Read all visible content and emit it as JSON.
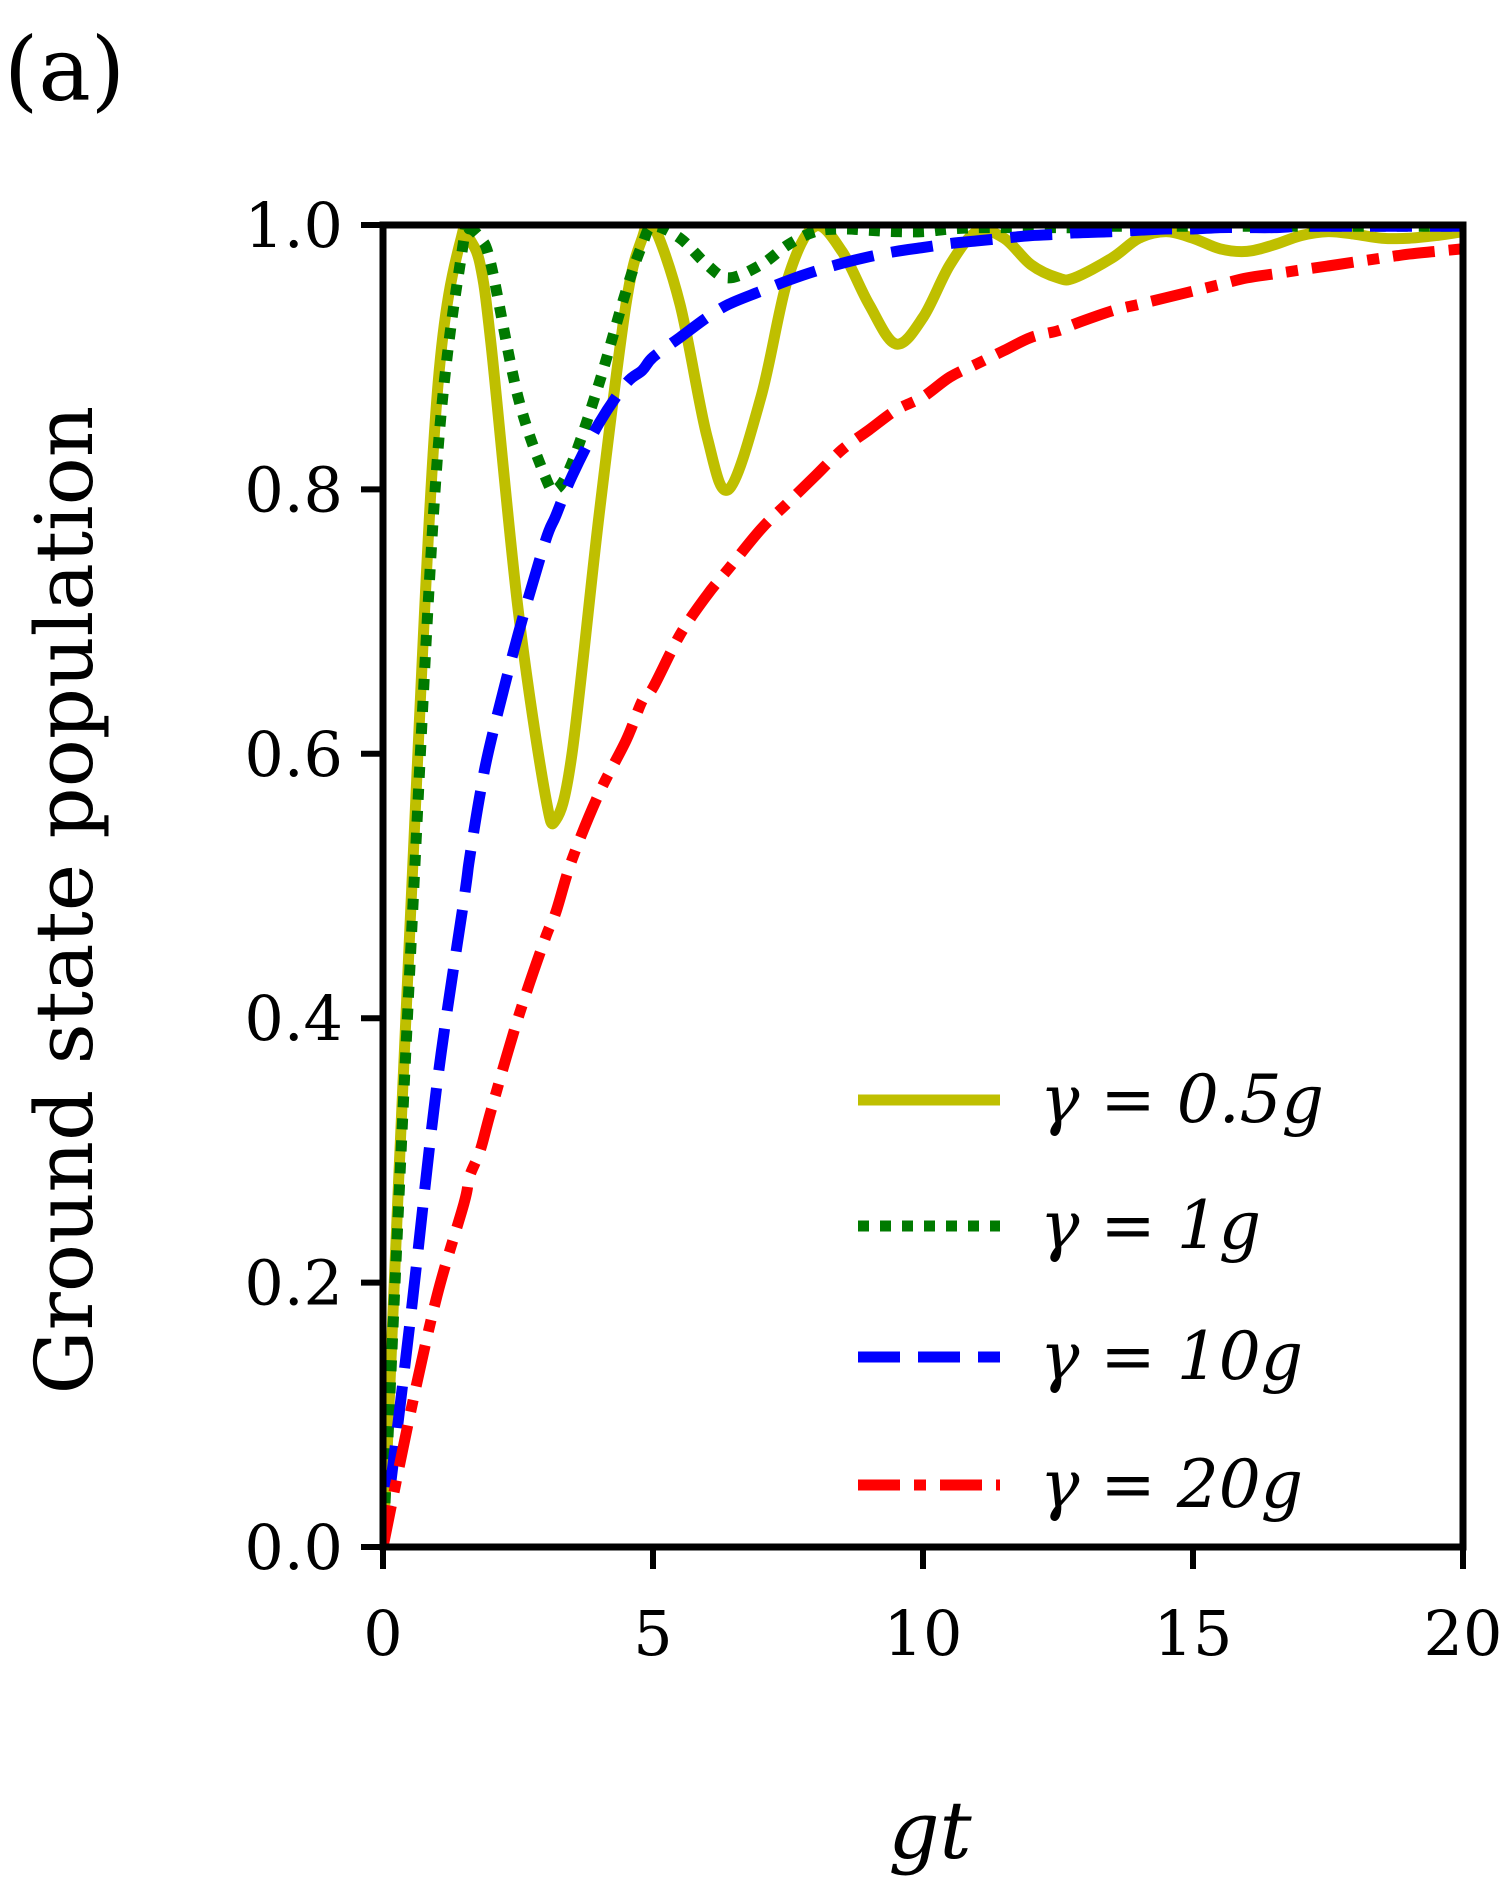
{
  "panel_label": "(a)",
  "chart_data": {
    "type": "line",
    "title": "",
    "xlabel": "gt",
    "ylabel": "Ground state population",
    "xlim": [
      0,
      20
    ],
    "ylim": [
      0,
      1.0
    ],
    "xticks": [
      0,
      5,
      10,
      15,
      20
    ],
    "xtick_labels": [
      "0",
      "5",
      "10",
      "15",
      "20"
    ],
    "yticks": [
      0.0,
      0.2,
      0.4,
      0.6,
      0.8,
      1.0
    ],
    "ytick_labels": [
      "0.0",
      "0.2",
      "0.4",
      "0.6",
      "0.8",
      "1.0"
    ],
    "grid": false,
    "legend_position": "bottom-right",
    "x": [
      0,
      0.5,
      1,
      1.5,
      1.6,
      1.8,
      2,
      2.5,
      3,
      3.2,
      3.5,
      4,
      4.5,
      4.8,
      5,
      5.5,
      6,
      6.4,
      7,
      7.5,
      8,
      8.5,
      9,
      9.5,
      10,
      10.5,
      11,
      11.5,
      12,
      12.5,
      12.8,
      13.5,
      14,
      14.5,
      15,
      15.5,
      16,
      16.5,
      17,
      17.5,
      18,
      18.5,
      19,
      19.5,
      20
    ],
    "series": [
      {
        "name": "γ = 0.5g",
        "legend_label": "γ = 0.5g",
        "color": "#bfbf00",
        "style": "solid",
        "values": [
          0,
          0.47,
          0.87,
          0.999,
          0.99,
          0.97,
          0.91,
          0.71,
          0.57,
          0.55,
          0.6,
          0.78,
          0.94,
          0.99,
          1.0,
          0.94,
          0.84,
          0.8,
          0.87,
          0.96,
          0.999,
          0.98,
          0.94,
          0.91,
          0.93,
          0.97,
          0.995,
          0.99,
          0.97,
          0.96,
          0.96,
          0.975,
          0.99,
          0.995,
          0.99,
          0.982,
          0.98,
          0.985,
          0.992,
          0.995,
          0.993,
          0.99,
          0.99,
          0.992,
          0.995
        ]
      },
      {
        "name": "γ = 1g",
        "legend_label": "γ = 1g",
        "color": "#007a00",
        "style": "dotted",
        "values": [
          0,
          0.44,
          0.82,
          0.99,
          0.997,
          0.99,
          0.97,
          0.87,
          0.81,
          0.8,
          0.82,
          0.88,
          0.95,
          0.985,
          0.999,
          0.99,
          0.97,
          0.96,
          0.97,
          0.985,
          0.995,
          0.997,
          0.996,
          0.995,
          0.995,
          0.997,
          0.998,
          0.998,
          0.998,
          0.998,
          0.998,
          0.999,
          0.999,
          0.999,
          0.999,
          0.999,
          0.999,
          0.999,
          0.999,
          0.999,
          0.999,
          0.999,
          0.999,
          0.999,
          0.999
        ]
      },
      {
        "name": "γ = 10g",
        "legend_label": "γ = 10g",
        "color": "#0000ff",
        "style": "dashed",
        "values": [
          0,
          0.17,
          0.35,
          0.49,
          0.52,
          0.57,
          0.61,
          0.69,
          0.76,
          0.78,
          0.81,
          0.85,
          0.88,
          0.89,
          0.9,
          0.915,
          0.93,
          0.94,
          0.95,
          0.958,
          0.965,
          0.971,
          0.976,
          0.98,
          0.983,
          0.986,
          0.988,
          0.99,
          0.992,
          0.993,
          0.994,
          0.995,
          0.996,
          0.997,
          0.997,
          0.998,
          0.998,
          0.998,
          0.999,
          0.999,
          0.999,
          0.999,
          0.999,
          0.999,
          0.999
        ]
      },
      {
        "name": "γ = 20g",
        "legend_label": "γ = 20g",
        "color": "#ff0000",
        "style": "dashdot",
        "values": [
          0,
          0.1,
          0.19,
          0.26,
          0.28,
          0.3,
          0.33,
          0.4,
          0.46,
          0.48,
          0.52,
          0.57,
          0.61,
          0.64,
          0.65,
          0.69,
          0.72,
          0.74,
          0.77,
          0.79,
          0.81,
          0.83,
          0.845,
          0.86,
          0.87,
          0.885,
          0.895,
          0.905,
          0.915,
          0.92,
          0.925,
          0.935,
          0.94,
          0.945,
          0.95,
          0.955,
          0.96,
          0.963,
          0.966,
          0.969,
          0.972,
          0.975,
          0.978,
          0.98,
          0.982
        ]
      }
    ]
  }
}
